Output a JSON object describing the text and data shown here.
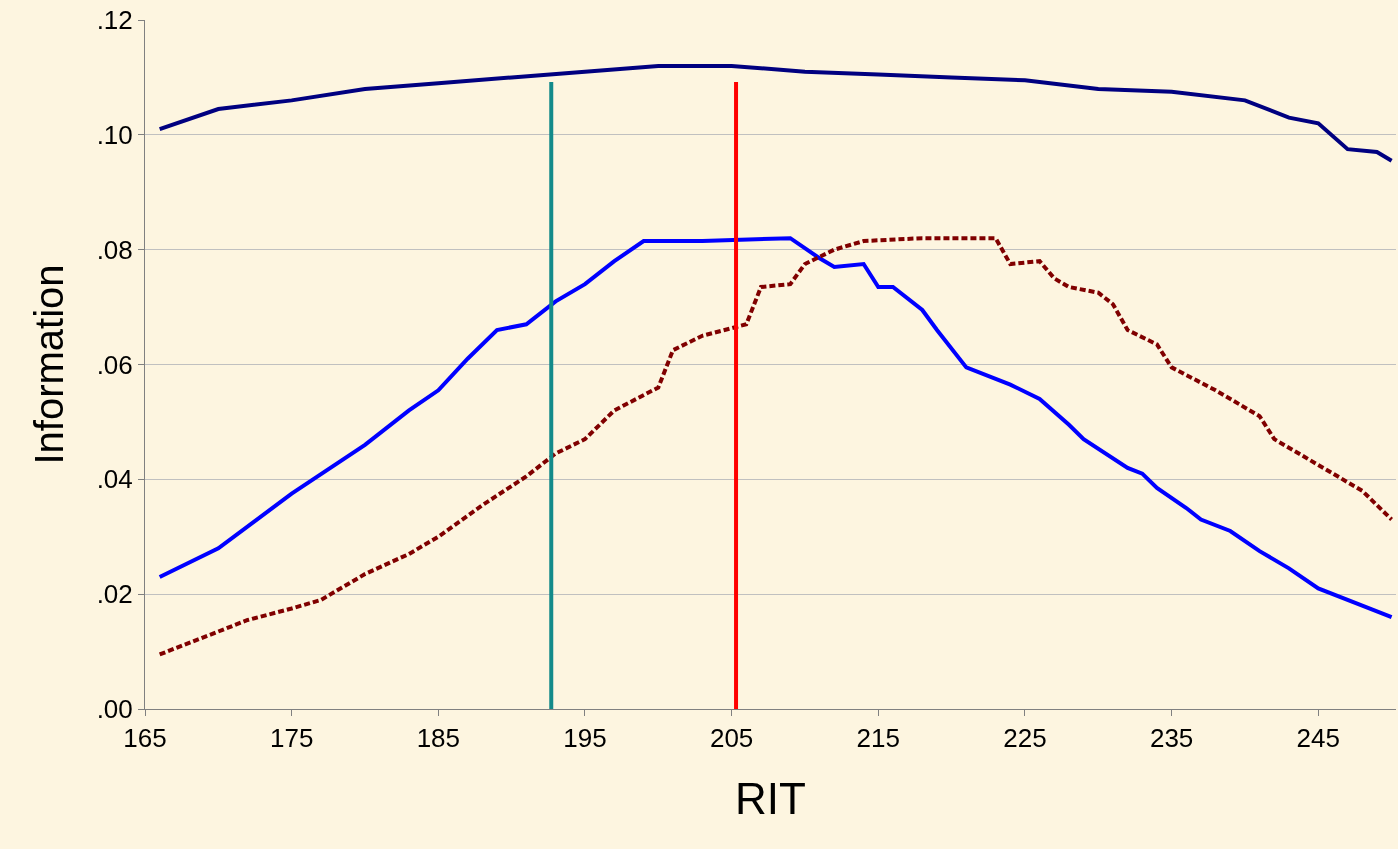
{
  "chart_data": {
    "type": "line",
    "xlabel": "RIT",
    "ylabel": "Information",
    "xlim": [
      165,
      250.3
    ],
    "xticks": [
      165,
      175,
      185,
      195,
      205,
      215,
      225,
      235,
      245
    ],
    "ylim": [
      0,
      0.12
    ],
    "yticks": [
      {
        "value": 0,
        "label": ".00"
      },
      {
        "value": 0.02,
        "label": ".02"
      },
      {
        "value": 0.04,
        "label": ".04"
      },
      {
        "value": 0.06,
        "label": ".06"
      },
      {
        "value": 0.08,
        "label": ".08"
      },
      {
        "value": 0.1,
        "label": ".10"
      },
      {
        "value": 0.12,
        "label": ".12"
      }
    ],
    "grid": "y",
    "marker": "none",
    "series": [
      {
        "color": "#000080",
        "line_style": "solid",
        "x": [
          166,
          170,
          175,
          180,
          185,
          190,
          195,
          200,
          205,
          210,
          215,
          220,
          225,
          230,
          235,
          240,
          243,
          245,
          247,
          249,
          250
        ],
        "values": [
          0.101,
          0.1045,
          0.106,
          0.108,
          0.109,
          0.11,
          0.111,
          0.112,
          0.112,
          0.111,
          0.1105,
          0.11,
          0.1095,
          0.108,
          0.1075,
          0.106,
          0.103,
          0.102,
          0.0975,
          0.097,
          0.0955
        ]
      },
      {
        "color": "#0000ff",
        "line_style": "solid",
        "x": [
          166,
          170,
          175,
          180,
          183,
          185,
          187,
          189,
          191,
          193,
          195,
          197,
          199,
          203,
          209,
          211,
          212,
          214,
          215,
          216,
          218,
          219,
          221,
          224,
          226,
          228,
          229,
          232,
          233,
          234,
          236,
          237,
          239,
          241,
          243,
          245,
          248,
          250
        ],
        "values": [
          0.023,
          0.028,
          0.0375,
          0.046,
          0.052,
          0.0555,
          0.061,
          0.066,
          0.067,
          0.071,
          0.074,
          0.078,
          0.0815,
          0.0815,
          0.082,
          0.0785,
          0.077,
          0.0775,
          0.0735,
          0.0735,
          0.0695,
          0.066,
          0.0595,
          0.0565,
          0.054,
          0.0495,
          0.047,
          0.042,
          0.041,
          0.0385,
          0.035,
          0.033,
          0.031,
          0.0275,
          0.0245,
          0.021,
          0.018,
          0.016
        ]
      },
      {
        "color": "#800000",
        "line_style": "dashed",
        "x": [
          166,
          170,
          172,
          175,
          177,
          180,
          183,
          185,
          188,
          191,
          193,
          195,
          197,
          200,
          201,
          203,
          206,
          207,
          209,
          210,
          212,
          214,
          218,
          223,
          224,
          226,
          227,
          228,
          230,
          231,
          232,
          234,
          235,
          238,
          241,
          242,
          245,
          248,
          250
        ],
        "values": [
          0.0095,
          0.0135,
          0.0155,
          0.0175,
          0.019,
          0.0235,
          0.027,
          0.03,
          0.0355,
          0.0405,
          0.0445,
          0.047,
          0.052,
          0.056,
          0.0625,
          0.065,
          0.067,
          0.0735,
          0.074,
          0.0775,
          0.08,
          0.0815,
          0.082,
          0.082,
          0.0775,
          0.078,
          0.075,
          0.0735,
          0.0725,
          0.0705,
          0.066,
          0.0635,
          0.0595,
          0.0555,
          0.051,
          0.047,
          0.0425,
          0.038,
          0.033
        ]
      }
    ],
    "ref_lines": [
      {
        "axis": "x",
        "value": 192.7,
        "color": "#138a8a",
        "line_style": "solid"
      },
      {
        "axis": "x",
        "value": 205.3,
        "color": "#ff0000",
        "line_style": "solid"
      }
    ]
  }
}
